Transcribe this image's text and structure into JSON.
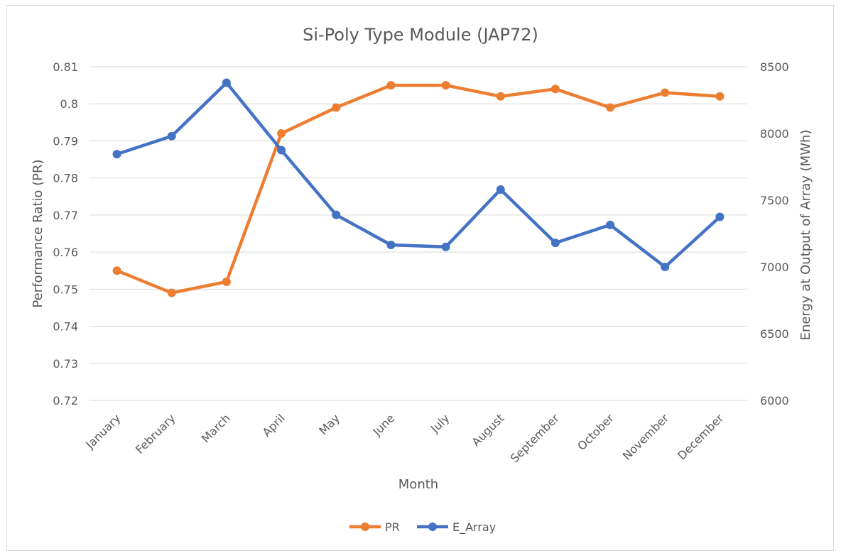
{
  "chart_data": {
    "type": "line",
    "title": "Si-Poly Type Module (JAP72)",
    "xlabel": "Month",
    "ylabel": "Performance Ratio (PR)",
    "y2label": "Energy at Output of Array (MWh)",
    "categories": [
      "January",
      "February",
      "March",
      "April",
      "May",
      "June",
      "July",
      "August",
      "September",
      "October",
      "November",
      "December"
    ],
    "ylim": [
      0.72,
      0.81
    ],
    "y_ticks": [
      "0.72",
      "0.73",
      "0.74",
      "0.75",
      "0.76",
      "0.77",
      "0.78",
      "0.79",
      "0.8",
      "0.81"
    ],
    "y2lim": [
      6000,
      8500
    ],
    "y2_ticks": [
      "6000",
      "6500",
      "7000",
      "7500",
      "8000",
      "8500"
    ],
    "grid": true,
    "legend_position": "bottom",
    "series": [
      {
        "name": "PR",
        "axis": "left",
        "color": "#ED7D31",
        "values": [
          0.755,
          0.749,
          0.752,
          0.792,
          0.799,
          0.805,
          0.805,
          0.802,
          0.804,
          0.799,
          0.803,
          0.802
        ]
      },
      {
        "name": "E_Array",
        "axis": "right",
        "color": "#4472C4",
        "values": [
          7845,
          7980,
          8380,
          7875,
          7390,
          7165,
          7150,
          7580,
          7180,
          7315,
          7000,
          7375
        ]
      }
    ]
  }
}
